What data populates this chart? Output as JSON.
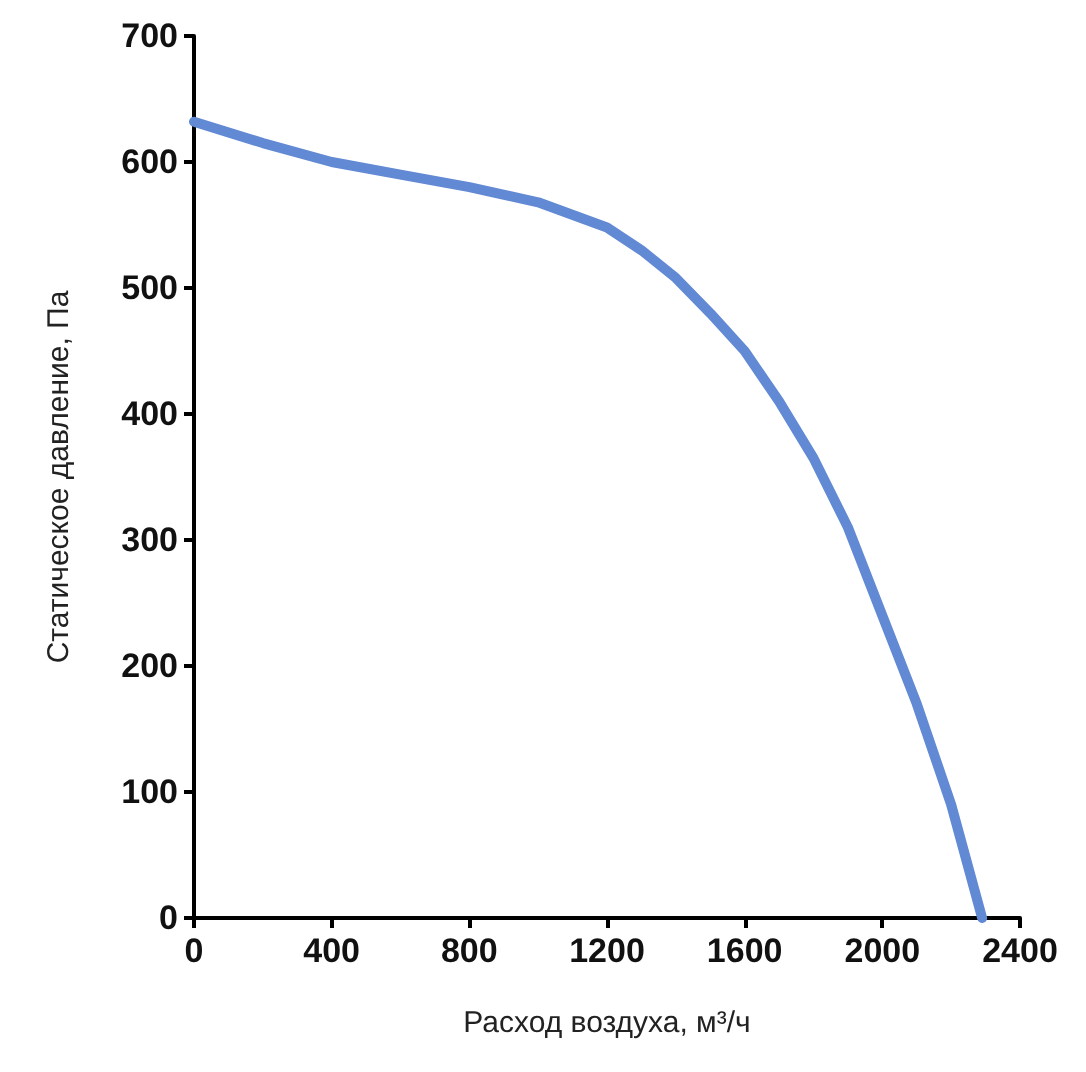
{
  "chart_data": {
    "type": "line",
    "xlabel": "Расход воздуха, м³/ч",
    "ylabel": "Статическое давление, Па",
    "x": [
      0,
      200,
      400,
      600,
      800,
      1000,
      1200,
      1300,
      1400,
      1500,
      1600,
      1700,
      1800,
      1900,
      2000,
      2100,
      2200,
      2290
    ],
    "series": [
      {
        "color": "#6289d4",
        "values": [
          632,
          615,
          600,
          590,
          580,
          568,
          548,
          530,
          508,
          480,
          450,
          410,
          365,
          310,
          240,
          170,
          90,
          0
        ]
      }
    ],
    "xlim": [
      0,
      2400
    ],
    "xticks": [
      0,
      400,
      800,
      1200,
      1600,
      2000,
      2400
    ],
    "ylim": [
      0,
      700
    ],
    "yticks": [
      0,
      100,
      200,
      300,
      400,
      500,
      600,
      700
    ],
    "grid": false,
    "marker": "none",
    "line_style": "solid"
  }
}
